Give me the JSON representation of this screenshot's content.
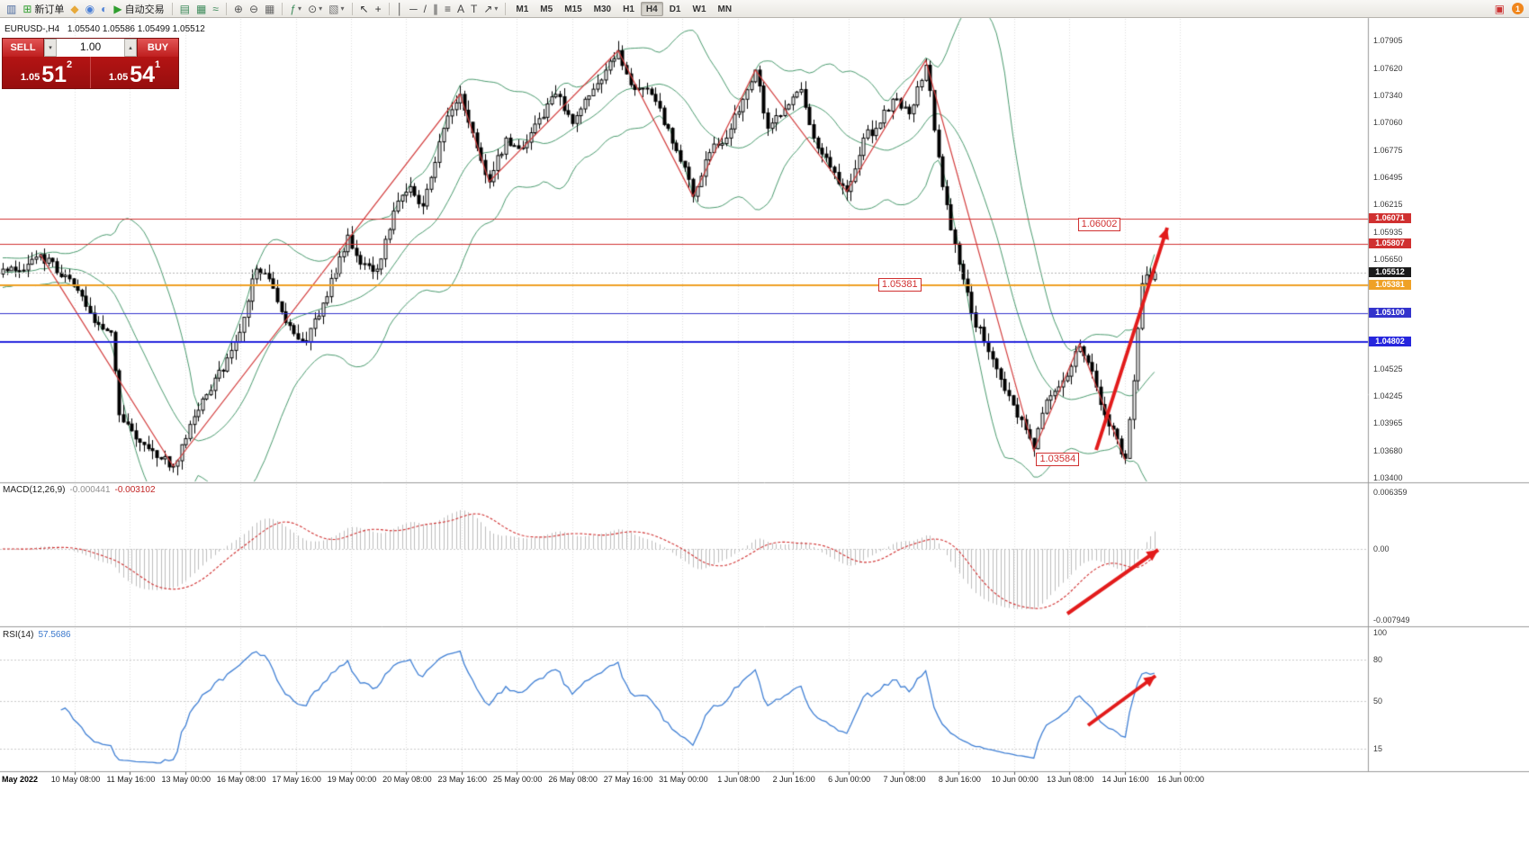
{
  "toolbar": {
    "groups": [
      {
        "items": [
          {
            "name": "new-chart-icon",
            "glyph": "▥",
            "color": "#47679c"
          },
          {
            "name": "new-order-button",
            "glyph": "⊞",
            "color": "#2f9e2f",
            "label": "新订单"
          },
          {
            "name": "mql5-market-icon",
            "glyph": "◆",
            "color": "#e7a93a"
          },
          {
            "name": "community-icon",
            "glyph": "◉",
            "color": "#4a7fd6"
          },
          {
            "name": "news-icon",
            "glyph": "◐",
            "color": "#4a7fd6"
          },
          {
            "name": "autotrading-button",
            "glyph": "▶",
            "color": "#2f9e2f",
            "label": "自动交易"
          }
        ]
      },
      {
        "items": [
          {
            "name": "bar-chart-icon",
            "glyph": "▤",
            "color": "#3c8a5a"
          },
          {
            "name": "candlestick-chart-icon",
            "glyph": "▦",
            "color": "#3c8a5a"
          },
          {
            "name": "line-chart-icon",
            "glyph": "≈",
            "color": "#3c8a5a"
          }
        ]
      },
      {
        "items": [
          {
            "name": "zoom-in-icon",
            "glyph": "⊕",
            "color": "#555555"
          },
          {
            "name": "zoom-out-icon",
            "glyph": "⊖",
            "color": "#555555"
          },
          {
            "name": "tile-windows-icon",
            "glyph": "▦",
            "color": "#666666"
          }
        ]
      },
      {
        "items": [
          {
            "name": "indicators-icon",
            "glyph": "ƒ",
            "color": "#3c8a5a",
            "caret": true
          },
          {
            "name": "periods-icon",
            "glyph": "⊙",
            "color": "#555555",
            "caret": true
          },
          {
            "name": "templates-icon",
            "glyph": "▧",
            "color": "#777777",
            "caret": true
          }
        ]
      },
      {
        "items": [
          {
            "name": "cursor-icon",
            "glyph": "↖",
            "color": "#333333"
          },
          {
            "name": "crosshair-icon",
            "glyph": "+",
            "color": "#333333"
          }
        ]
      },
      {
        "items": [
          {
            "name": "vertical-line-icon",
            "glyph": "│",
            "color": "#444444"
          },
          {
            "name": "horizontal-line-icon",
            "glyph": "─",
            "color": "#444444"
          },
          {
            "name": "trendline-icon",
            "glyph": "/",
            "color": "#444444"
          },
          {
            "name": "channel-icon",
            "glyph": "∥",
            "color": "#444444"
          },
          {
            "name": "fibonacci-icon",
            "glyph": "≡",
            "color": "#444444"
          },
          {
            "name": "text-icon",
            "glyph": "A",
            "color": "#444444"
          },
          {
            "name": "label-icon",
            "glyph": "T",
            "color": "#444444"
          },
          {
            "name": "arrows-icon",
            "glyph": "↗",
            "color": "#444444",
            "caret": true
          }
        ]
      }
    ],
    "timeframes": [
      "M1",
      "M5",
      "M15",
      "M30",
      "H1",
      "H4",
      "D1",
      "W1",
      "MN"
    ],
    "active_timeframe": "H4",
    "alerts_icon_glyph": "▣",
    "notification_badge": "1"
  },
  "trade_panel": {
    "sell_label": "SELL",
    "buy_label": "BUY",
    "volume": "1.00",
    "bid_small": "1.05",
    "bid_big": "51",
    "bid_sup": "2",
    "ask_small": "1.05",
    "ask_big": "54",
    "ask_sup": "1"
  },
  "chart": {
    "symbol_header": "EURUSD-,H4",
    "ohlc": "1.05540 1.05586 1.05499 1.05512",
    "levels": [
      {
        "price": 1.06071,
        "label": "1.06071",
        "color": "#d03030",
        "width": 1
      },
      {
        "price": 1.05807,
        "label": "1.05807",
        "color": "#d03030",
        "width": 1
      },
      {
        "price": 1.05381,
        "label": "1.05381",
        "color": "#efa126",
        "width": 2
      },
      {
        "price": 1.051,
        "label": "1.05100",
        "color": "#3333cc",
        "width": 1
      },
      {
        "price": 1.04802,
        "label": "1.04802",
        "color": "#2525dd",
        "width": 2
      }
    ],
    "current": {
      "price": 1.05512,
      "label": "1.05512",
      "color": "#1a1a1a"
    },
    "annotations": [
      {
        "text": "1.06002",
        "bar": 272,
        "price": 1.06002
      },
      {
        "text": "1.05381",
        "bar": 224,
        "price": 1.05381
      },
      {
        "text": "1.03584",
        "bar": 262,
        "price": 1.03584
      }
    ],
    "price_axis_ticks": [
      "1.07905",
      "1.07620",
      "1.07340",
      "1.07060",
      "1.06775",
      "1.06495",
      "1.06215",
      "1.05935",
      "1.05650",
      "1.05370",
      "1.05090",
      "1.04810",
      "1.04525",
      "1.04245",
      "1.03965",
      "1.03680",
      "1.03400"
    ]
  },
  "chart_data": {
    "type": "candlestick",
    "symbol": "EURUSD",
    "timeframe": "H4",
    "bars": 278,
    "last_close": 1.05512,
    "price_range": [
      1.034,
      1.07905
    ],
    "close_path_anchors": [
      [
        0,
        1.0555
      ],
      [
        6,
        1.056
      ],
      [
        9,
        1.057
      ],
      [
        16,
        1.0545
      ],
      [
        22,
        1.05
      ],
      [
        26,
        1.049
      ],
      [
        28,
        1.0405
      ],
      [
        32,
        1.038
      ],
      [
        36,
        1.0368
      ],
      [
        41,
        1.0352
      ],
      [
        45,
        1.0395
      ],
      [
        50,
        1.043
      ],
      [
        56,
        1.048
      ],
      [
        61,
        1.0555
      ],
      [
        64,
        1.0545
      ],
      [
        68,
        1.05
      ],
      [
        73,
        1.048
      ],
      [
        77,
        1.052
      ],
      [
        83,
        1.059
      ],
      [
        86,
        1.056
      ],
      [
        90,
        1.0555
      ],
      [
        95,
        1.0625
      ],
      [
        98,
        1.064
      ],
      [
        101,
        1.062
      ],
      [
        106,
        1.07
      ],
      [
        110,
        1.0735
      ],
      [
        114,
        1.068
      ],
      [
        117,
        1.0645
      ],
      [
        121,
        1.069
      ],
      [
        125,
        1.068
      ],
      [
        129,
        1.071
      ],
      [
        133,
        1.0735
      ],
      [
        137,
        1.0705
      ],
      [
        140,
        1.073
      ],
      [
        145,
        1.076
      ],
      [
        148,
        1.078
      ],
      [
        152,
        1.074
      ],
      [
        156,
        1.0735
      ],
      [
        160,
        1.07
      ],
      [
        164,
        1.066
      ],
      [
        166,
        1.063
      ],
      [
        170,
        1.0675
      ],
      [
        174,
        1.069
      ],
      [
        178,
        1.073
      ],
      [
        181,
        1.076
      ],
      [
        184,
        1.07
      ],
      [
        188,
        1.072
      ],
      [
        192,
        1.074
      ],
      [
        195,
        1.069
      ],
      [
        199,
        1.066
      ],
      [
        203,
        1.0635
      ],
      [
        207,
        1.069
      ],
      [
        210,
        1.07
      ],
      [
        214,
        1.073
      ],
      [
        218,
        1.0715
      ],
      [
        222,
        1.0765
      ],
      [
        226,
        1.064
      ],
      [
        230,
        1.056
      ],
      [
        233,
        1.051
      ],
      [
        237,
        1.047
      ],
      [
        241,
        1.043
      ],
      [
        245,
        1.04
      ],
      [
        248,
        1.037
      ],
      [
        251,
        1.042
      ],
      [
        255,
        1.044
      ],
      [
        259,
        1.0475
      ],
      [
        262,
        1.045
      ],
      [
        265,
        1.0405
      ],
      [
        268,
        1.038
      ],
      [
        270,
        1.036
      ],
      [
        272,
        1.044
      ],
      [
        274,
        1.054
      ],
      [
        277,
        1.0551
      ]
    ],
    "zigzag": [
      [
        9,
        1.057
      ],
      [
        41,
        1.0352
      ],
      [
        110,
        1.0735
      ],
      [
        117,
        1.0645
      ],
      [
        148,
        1.078
      ],
      [
        166,
        1.063
      ],
      [
        181,
        1.076
      ],
      [
        203,
        1.0635
      ],
      [
        222,
        1.077
      ],
      [
        248,
        1.0368
      ],
      [
        259,
        1.0478
      ],
      [
        270,
        1.0358
      ]
    ],
    "bollinger": {
      "period": 20,
      "deviation": 2,
      "color": "#4a9a6e"
    },
    "arrows": [
      {
        "panel": "chart",
        "from": [
          1218,
          500
        ],
        "to": [
          1297,
          253
        ]
      },
      {
        "panel": "macd",
        "from": [
          1186,
          682
        ],
        "to": [
          1287,
          611
        ]
      },
      {
        "panel": "rsi",
        "from": [
          1209,
          806
        ],
        "to": [
          1284,
          751
        ]
      }
    ]
  },
  "macd": {
    "title": "MACD(12,26,9)",
    "value1": "-0.000441",
    "value2": "-0.003102",
    "fast": 12,
    "slow": 26,
    "signal": 9,
    "axis": [
      {
        "text": "0.006359",
        "value": 0.006359
      },
      {
        "text": "0.00",
        "value": 0
      },
      {
        "text": "-0.007949",
        "value": -0.007949
      }
    ],
    "histogram_color": "#bdbdbd",
    "signal_color": "#d03030"
  },
  "rsi": {
    "title": "RSI(14)",
    "value": "57.5686",
    "period": 14,
    "line_color": "#3f7fd4",
    "levels": [
      80,
      50,
      15
    ],
    "axis": [
      {
        "text": "100",
        "value": 100
      },
      {
        "text": "80",
        "value": 80
      },
      {
        "text": "50",
        "value": 50
      },
      {
        "text": "15",
        "value": 15
      }
    ]
  },
  "time_axis": {
    "first_label": "May 2022",
    "labels": [
      "10 May 08:00",
      "11 May 16:00",
      "13 May 00:00",
      "16 May 08:00",
      "17 May 16:00",
      "19 May 00:00",
      "20 May 08:00",
      "23 May 16:00",
      "25 May 00:00",
      "26 May 08:00",
      "27 May 16:00",
      "31 May 00:00",
      "1 Jun 08:00",
      "2 Jun 16:00",
      "6 Jun 00:00",
      "7 Jun 08:00",
      "8 Jun 16:00",
      "10 Jun 00:00",
      "13 Jun 08:00",
      "14 Jun 16:00",
      "16 Jun 00:00"
    ]
  }
}
